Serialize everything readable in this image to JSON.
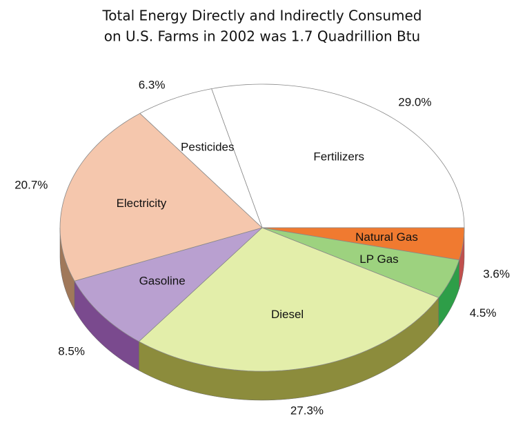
{
  "chart_data": {
    "type": "pie",
    "title": [
      "Total Energy Directly and Indirectly Consumed",
      "on U.S. Farms in 2002 was 1.7 Quadrillion Btu"
    ],
    "categories": [
      "Fertilizers",
      "Natural Gas",
      "LP Gas",
      "Diesel",
      "Gasoline",
      "Electricity",
      "Pesticides"
    ],
    "values": [
      29.0,
      3.6,
      4.5,
      27.3,
      8.5,
      20.7,
      6.3
    ],
    "value_labels": [
      "29.0%",
      "3.6%",
      "4.5%",
      "27.3%",
      "8.5%",
      "20.7%",
      "6.3%"
    ],
    "colors": [
      "#ffffff",
      "#f07a30",
      "#9dd27f",
      "#e3eeaa",
      "#b9a0d0",
      "#f5c7ad",
      "#ffffff"
    ],
    "side_colors": [
      "#dddddd",
      "#c0504d",
      "#2e9e48",
      "#8c8c3c",
      "#7a4a8e",
      "#a0785a",
      "#dddddd"
    ]
  }
}
